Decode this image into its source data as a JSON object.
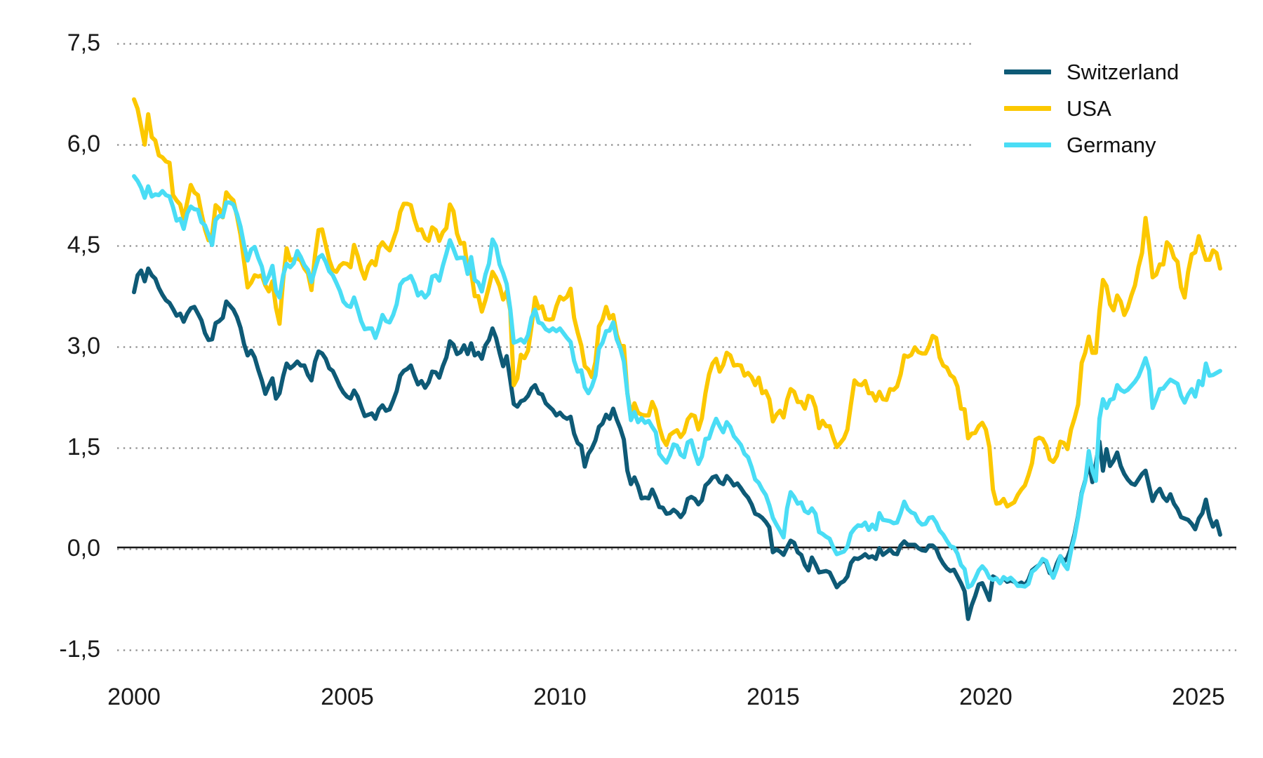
{
  "page": {
    "background": "#ffffff"
  },
  "chart_data": {
    "type": "line",
    "title": "",
    "frequency": "monthly",
    "start": "2000-01",
    "end": "2025-07",
    "x_axis": {
      "tick_labels": [
        "2000",
        "2005",
        "2010",
        "2015",
        "2020",
        "2025"
      ],
      "tick_years": [
        2000,
        2005,
        2010,
        2015,
        2020,
        2025
      ],
      "range": [
        2000,
        2025.6
      ]
    },
    "y_axis": {
      "tick_labels": [
        "7,5",
        "6,0",
        "4,5",
        "3,0",
        "1,5",
        "0,0",
        "-1,5"
      ],
      "tick_values": [
        7.5,
        6.0,
        4.5,
        3.0,
        1.5,
        0.0,
        -1.5
      ],
      "range": [
        -1.5,
        7.5
      ],
      "decimal_separator": ","
    },
    "grid": {
      "style": "dotted",
      "color": "#8f8f8f",
      "zero_line": true,
      "zero_line_color": "#1a1a1a"
    },
    "legend": {
      "position": "top-right",
      "entries": [
        "Switzerland",
        "USA",
        "Germany"
      ]
    },
    "series": [
      {
        "name": "Switzerland",
        "color": "#0e5a76",
        "values": [
          3.8,
          4.05,
          4.12,
          3.96,
          4.15,
          4.05,
          4.0,
          3.86,
          3.76,
          3.68,
          3.64,
          3.55,
          3.45,
          3.48,
          3.36,
          3.48,
          3.56,
          3.58,
          3.48,
          3.38,
          3.19,
          3.09,
          3.1,
          3.34,
          3.37,
          3.42,
          3.66,
          3.6,
          3.54,
          3.43,
          3.27,
          3.03,
          2.86,
          2.93,
          2.83,
          2.65,
          2.49,
          2.29,
          2.41,
          2.52,
          2.22,
          2.3,
          2.55,
          2.74,
          2.67,
          2.71,
          2.77,
          2.71,
          2.71,
          2.57,
          2.49,
          2.77,
          2.92,
          2.89,
          2.81,
          2.67,
          2.63,
          2.52,
          2.4,
          2.31,
          2.25,
          2.22,
          2.34,
          2.25,
          2.1,
          1.96,
          1.98,
          2.0,
          1.92,
          2.06,
          2.12,
          2.04,
          2.06,
          2.19,
          2.33,
          2.56,
          2.63,
          2.66,
          2.71,
          2.56,
          2.43,
          2.48,
          2.38,
          2.46,
          2.62,
          2.61,
          2.53,
          2.7,
          2.83,
          3.07,
          3.02,
          2.88,
          2.91,
          3.01,
          2.88,
          3.04,
          2.86,
          2.9,
          2.81,
          3.01,
          3.09,
          3.26,
          3.12,
          2.9,
          2.7,
          2.85,
          2.5,
          2.14,
          2.1,
          2.18,
          2.2,
          2.26,
          2.37,
          2.42,
          2.3,
          2.28,
          2.15,
          2.1,
          2.05,
          1.97,
          2.01,
          1.95,
          1.92,
          1.95,
          1.7,
          1.56,
          1.52,
          1.21,
          1.4,
          1.48,
          1.6,
          1.8,
          1.85,
          1.98,
          1.92,
          2.07,
          1.91,
          1.78,
          1.61,
          1.15,
          0.95,
          1.05,
          0.92,
          0.74,
          0.75,
          0.74,
          0.87,
          0.75,
          0.61,
          0.6,
          0.51,
          0.52,
          0.57,
          0.53,
          0.46,
          0.53,
          0.73,
          0.76,
          0.73,
          0.65,
          0.71,
          0.93,
          0.98,
          1.05,
          1.07,
          0.98,
          0.95,
          1.07,
          1.01,
          0.93,
          0.96,
          0.89,
          0.81,
          0.75,
          0.65,
          0.51,
          0.49,
          0.45,
          0.39,
          0.31,
          -0.06,
          -0.02,
          -0.05,
          -0.1,
          0.01,
          0.11,
          0.08,
          -0.06,
          -0.1,
          -0.25,
          -0.33,
          -0.14,
          -0.24,
          -0.36,
          -0.35,
          -0.34,
          -0.36,
          -0.47,
          -0.58,
          -0.52,
          -0.49,
          -0.42,
          -0.22,
          -0.15,
          -0.16,
          -0.13,
          -0.09,
          -0.14,
          -0.12,
          -0.16,
          0.0,
          -0.1,
          -0.06,
          -0.02,
          -0.08,
          -0.09,
          0.04,
          0.1,
          0.05,
          0.05,
          0.05,
          0.0,
          -0.03,
          -0.04,
          0.04,
          0.04,
          -0.01,
          -0.14,
          -0.23,
          -0.3,
          -0.34,
          -0.32,
          -0.42,
          -0.52,
          -0.64,
          -1.05,
          -0.85,
          -0.71,
          -0.54,
          -0.52,
          -0.64,
          -0.77,
          -0.42,
          -0.45,
          -0.52,
          -0.44,
          -0.5,
          -0.48,
          -0.5,
          -0.54,
          -0.51,
          -0.55,
          -0.47,
          -0.33,
          -0.29,
          -0.25,
          -0.18,
          -0.21,
          -0.37,
          -0.39,
          -0.23,
          -0.12,
          -0.2,
          -0.14,
          0.0,
          0.21,
          0.48,
          0.82,
          1.0,
          1.28,
          0.98,
          1.25,
          1.58,
          1.15,
          1.47,
          1.22,
          1.3,
          1.42,
          1.22,
          1.1,
          1.02,
          0.96,
          0.94,
          1.02,
          1.1,
          1.15,
          0.92,
          0.7,
          0.82,
          0.88,
          0.76,
          0.7,
          0.8,
          0.66,
          0.58,
          0.46,
          0.44,
          0.42,
          0.36,
          0.28,
          0.44,
          0.52,
          0.72,
          0.46,
          0.32,
          0.4,
          0.2
        ]
      },
      {
        "name": "USA",
        "color": "#fcc800",
        "values": [
          6.66,
          6.52,
          6.26,
          5.99,
          6.44,
          6.1,
          6.05,
          5.83,
          5.8,
          5.74,
          5.72,
          5.24,
          5.16,
          5.1,
          4.89,
          5.14,
          5.39,
          5.28,
          5.24,
          4.97,
          4.73,
          4.57,
          4.65,
          5.09,
          5.04,
          4.91,
          5.28,
          5.21,
          5.16,
          4.93,
          4.65,
          4.26,
          3.87,
          3.94,
          4.05,
          4.03,
          4.05,
          3.9,
          3.81,
          3.96,
          3.57,
          3.33,
          3.98,
          4.45,
          4.27,
          4.29,
          4.3,
          4.27,
          4.15,
          4.08,
          3.83,
          4.35,
          4.72,
          4.73,
          4.5,
          4.28,
          4.13,
          4.1,
          4.19,
          4.23,
          4.22,
          4.17,
          4.5,
          4.34,
          4.14,
          4.0,
          4.18,
          4.26,
          4.2,
          4.46,
          4.54,
          4.47,
          4.42,
          4.57,
          4.72,
          4.99,
          5.11,
          5.11,
          5.09,
          4.88,
          4.72,
          4.73,
          4.6,
          4.56,
          4.76,
          4.72,
          4.56,
          4.69,
          4.75,
          5.1,
          5.0,
          4.67,
          4.52,
          4.53,
          4.15,
          4.1,
          3.74,
          3.74,
          3.51,
          3.68,
          3.88,
          4.1,
          4.01,
          3.89,
          3.69,
          3.81,
          3.53,
          2.42,
          2.52,
          2.87,
          2.82,
          2.93,
          3.29,
          3.72,
          3.56,
          3.59,
          3.4,
          3.39,
          3.4,
          3.59,
          3.73,
          3.69,
          3.73,
          3.85,
          3.42,
          3.2,
          3.01,
          2.7,
          2.65,
          2.54,
          2.76,
          3.29,
          3.39,
          3.58,
          3.41,
          3.46,
          3.17,
          3.0,
          3.0,
          2.3,
          1.98,
          2.15,
          2.01,
          1.98,
          1.97,
          1.97,
          2.17,
          2.05,
          1.8,
          1.62,
          1.53,
          1.68,
          1.72,
          1.75,
          1.65,
          1.72,
          1.91,
          1.98,
          1.96,
          1.76,
          1.93,
          2.3,
          2.58,
          2.74,
          2.81,
          2.62,
          2.72,
          2.9,
          2.86,
          2.71,
          2.72,
          2.71,
          2.56,
          2.6,
          2.54,
          2.42,
          2.53,
          2.3,
          2.33,
          2.21,
          1.88,
          1.98,
          2.04,
          1.94,
          2.2,
          2.36,
          2.32,
          2.17,
          2.17,
          2.07,
          2.26,
          2.24,
          2.09,
          1.78,
          1.89,
          1.81,
          1.81,
          1.64,
          1.5,
          1.56,
          1.63,
          1.76,
          2.14,
          2.49,
          2.43,
          2.42,
          2.48,
          2.3,
          2.3,
          2.19,
          2.32,
          2.21,
          2.2,
          2.36,
          2.35,
          2.4,
          2.58,
          2.86,
          2.84,
          2.87,
          2.98,
          2.91,
          2.89,
          2.89,
          3.0,
          3.15,
          3.12,
          2.83,
          2.71,
          2.68,
          2.57,
          2.53,
          2.4,
          2.07,
          2.06,
          1.63,
          1.7,
          1.71,
          1.81,
          1.86,
          1.76,
          1.5,
          0.87,
          0.66,
          0.67,
          0.73,
          0.62,
          0.65,
          0.68,
          0.79,
          0.87,
          0.93,
          1.08,
          1.26,
          1.61,
          1.64,
          1.62,
          1.52,
          1.32,
          1.28,
          1.37,
          1.58,
          1.56,
          1.47,
          1.76,
          1.93,
          2.13,
          2.75,
          2.9,
          3.14,
          2.9,
          2.9,
          3.52,
          3.98,
          3.89,
          3.62,
          3.53,
          3.75,
          3.66,
          3.46,
          3.57,
          3.75,
          3.9,
          4.17,
          4.38,
          4.9,
          4.5,
          4.02,
          4.06,
          4.21,
          4.21,
          4.54,
          4.48,
          4.31,
          4.25,
          3.87,
          3.72,
          4.1,
          4.36,
          4.39,
          4.63,
          4.45,
          4.28,
          4.28,
          4.42,
          4.38,
          4.15
        ]
      },
      {
        "name": "Germany",
        "color": "#4addf5",
        "values": [
          5.52,
          5.45,
          5.35,
          5.2,
          5.37,
          5.22,
          5.25,
          5.24,
          5.3,
          5.24,
          5.22,
          5.06,
          4.86,
          4.89,
          4.74,
          4.97,
          5.07,
          5.03,
          5.02,
          4.84,
          4.79,
          4.65,
          4.5,
          4.87,
          4.93,
          4.92,
          5.13,
          5.13,
          5.1,
          4.96,
          4.77,
          4.5,
          4.27,
          4.43,
          4.47,
          4.31,
          4.18,
          3.93,
          4.04,
          4.19,
          3.82,
          3.72,
          4.05,
          4.22,
          4.17,
          4.23,
          4.41,
          4.32,
          4.2,
          4.13,
          3.95,
          4.14,
          4.31,
          4.35,
          4.25,
          4.11,
          4.05,
          3.94,
          3.82,
          3.66,
          3.6,
          3.58,
          3.72,
          3.55,
          3.37,
          3.25,
          3.26,
          3.26,
          3.12,
          3.27,
          3.46,
          3.37,
          3.35,
          3.46,
          3.62,
          3.91,
          3.98,
          4.0,
          4.04,
          3.92,
          3.75,
          3.8,
          3.72,
          3.78,
          4.03,
          4.05,
          3.97,
          4.19,
          4.37,
          4.57,
          4.44,
          4.3,
          4.31,
          4.31,
          4.07,
          4.32,
          3.98,
          3.94,
          3.81,
          4.06,
          4.22,
          4.58,
          4.48,
          4.21,
          4.08,
          3.92,
          3.55,
          3.05,
          3.07,
          3.1,
          3.05,
          3.16,
          3.42,
          3.54,
          3.35,
          3.33,
          3.25,
          3.22,
          3.26,
          3.22,
          3.26,
          3.19,
          3.12,
          3.06,
          2.78,
          2.62,
          2.64,
          2.39,
          2.3,
          2.4,
          2.56,
          2.96,
          3.05,
          3.22,
          3.23,
          3.35,
          3.1,
          2.97,
          2.77,
          2.3,
          1.9,
          2.02,
          1.87,
          1.93,
          1.86,
          1.89,
          1.8,
          1.72,
          1.4,
          1.33,
          1.27,
          1.38,
          1.54,
          1.52,
          1.39,
          1.35,
          1.57,
          1.6,
          1.41,
          1.25,
          1.36,
          1.62,
          1.63,
          1.79,
          1.92,
          1.81,
          1.72,
          1.87,
          1.8,
          1.66,
          1.6,
          1.53,
          1.4,
          1.35,
          1.2,
          1.02,
          0.97,
          0.87,
          0.79,
          0.64,
          0.45,
          0.35,
          0.26,
          0.16,
          0.59,
          0.83,
          0.76,
          0.66,
          0.68,
          0.55,
          0.52,
          0.59,
          0.51,
          0.24,
          0.21,
          0.17,
          0.14,
          0.01,
          -0.09,
          -0.07,
          -0.05,
          0.02,
          0.22,
          0.29,
          0.34,
          0.33,
          0.38,
          0.27,
          0.35,
          0.28,
          0.52,
          0.42,
          0.41,
          0.4,
          0.37,
          0.38,
          0.52,
          0.69,
          0.58,
          0.53,
          0.51,
          0.4,
          0.35,
          0.36,
          0.45,
          0.46,
          0.38,
          0.26,
          0.2,
          0.11,
          0.03,
          0.01,
          -0.08,
          -0.25,
          -0.31,
          -0.58,
          -0.55,
          -0.45,
          -0.33,
          -0.27,
          -0.33,
          -0.44,
          -0.47,
          -0.45,
          -0.52,
          -0.43,
          -0.47,
          -0.44,
          -0.49,
          -0.56,
          -0.56,
          -0.57,
          -0.53,
          -0.35,
          -0.31,
          -0.25,
          -0.16,
          -0.19,
          -0.33,
          -0.44,
          -0.3,
          -0.12,
          -0.24,
          -0.31,
          -0.04,
          0.17,
          0.46,
          0.8,
          0.99,
          1.44,
          1.15,
          1.0,
          1.92,
          2.21,
          2.08,
          2.2,
          2.22,
          2.42,
          2.35,
          2.32,
          2.35,
          2.41,
          2.47,
          2.55,
          2.68,
          2.82,
          2.64,
          2.08,
          2.21,
          2.36,
          2.37,
          2.44,
          2.5,
          2.47,
          2.44,
          2.26,
          2.16,
          2.28,
          2.36,
          2.25,
          2.48,
          2.42,
          2.74,
          2.56,
          2.57,
          2.6,
          2.63
        ]
      }
    ]
  }
}
